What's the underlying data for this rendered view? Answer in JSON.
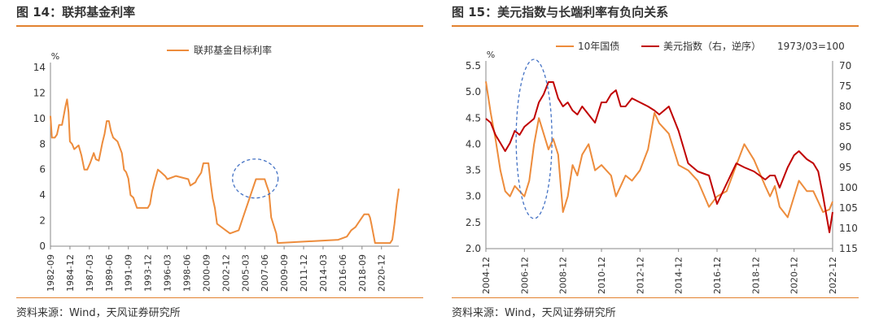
{
  "charts": {
    "left": {
      "title": "图 14：联邦基金利率",
      "source": "资料来源：Wind，天风证券研究所"
    },
    "right": {
      "title": "图 15：美元指数与长端利率有负向关系",
      "source": "资料来源：Wind，天风证券研究所"
    }
  },
  "colors": {
    "orange": "#ED8C3C",
    "darkred": "#C00000",
    "rule": "#E2822F",
    "dashed": "#4472C4"
  },
  "chart_data": [
    {
      "type": "line",
      "title": "",
      "ylabel": "%",
      "ylim": [
        0,
        14
      ],
      "yticks": [
        0,
        2,
        4,
        6,
        8,
        10,
        12,
        14
      ],
      "xrange": [
        "1982-09",
        "2022-12"
      ],
      "xticks": [
        "1982-09",
        "1984-12",
        "1987-03",
        "1989-06",
        "1991-09",
        "1993-12",
        "1996-03",
        "1998-06",
        "2000-09",
        "2002-12",
        "2005-03",
        "2007-06",
        "2009-09",
        "2011-12",
        "2014-03",
        "2016-06",
        "2018-09",
        "2020-12"
      ],
      "legend_position": "top-center",
      "grid": false,
      "annotation": "dashed ellipse around 2005-2007 peak",
      "series": [
        {
          "name": "联邦基金目标利率",
          "color": "#ED8C3C",
          "x": [
            "1982-09",
            "1982-11",
            "1983-03",
            "1983-06",
            "1983-09",
            "1984-01",
            "1984-06",
            "1984-08",
            "1984-10",
            "1984-12",
            "1985-03",
            "1985-06",
            "1985-12",
            "1986-04",
            "1986-08",
            "1986-12",
            "1987-04",
            "1987-09",
            "1987-12",
            "1988-04",
            "1988-09",
            "1988-12",
            "1989-03",
            "1989-06",
            "1989-09",
            "1989-12",
            "1990-06",
            "1990-12",
            "1991-03",
            "1991-06",
            "1991-09",
            "1991-12",
            "1992-04",
            "1992-09",
            "1993-12",
            "1994-03",
            "1994-06",
            "1994-09",
            "1995-02",
            "1995-07",
            "1995-12",
            "1996-03",
            "1997-03",
            "1998-08",
            "1998-11",
            "1999-06",
            "1999-08",
            "1999-11",
            "2000-02",
            "2000-05",
            "2000-12",
            "2001-03",
            "2001-06",
            "2001-09",
            "2001-12",
            "2002-12",
            "2003-06",
            "2004-06",
            "2004-12",
            "2005-06",
            "2005-12",
            "2006-06",
            "2007-06",
            "2007-09",
            "2007-12",
            "2008-03",
            "2008-10",
            "2008-12",
            "2015-12",
            "2016-12",
            "2017-06",
            "2017-12",
            "2018-06",
            "2018-12",
            "2019-06",
            "2019-08",
            "2019-10",
            "2020-03",
            "2020-06",
            "2021-12",
            "2022-03",
            "2022-06",
            "2022-09",
            "2022-12"
          ],
          "y": [
            10.2,
            8.5,
            8.5,
            8.75,
            9.5,
            9.5,
            11.0,
            11.5,
            10.5,
            8.2,
            8.0,
            7.6,
            7.9,
            7.1,
            6.0,
            6.0,
            6.5,
            7.3,
            6.8,
            6.7,
            8.1,
            8.8,
            9.8,
            9.8,
            9.0,
            8.5,
            8.2,
            7.3,
            6.0,
            5.8,
            5.3,
            4.0,
            3.8,
            3.0,
            3.0,
            3.3,
            4.3,
            5.0,
            6.0,
            5.75,
            5.5,
            5.25,
            5.5,
            5.25,
            4.75,
            5.0,
            5.25,
            5.5,
            5.75,
            6.5,
            6.5,
            5.0,
            3.75,
            3.0,
            1.75,
            1.25,
            1.0,
            1.25,
            2.25,
            3.25,
            4.25,
            5.25,
            5.25,
            4.75,
            4.25,
            2.25,
            1.0,
            0.25,
            0.5,
            0.75,
            1.25,
            1.5,
            2.0,
            2.5,
            2.5,
            2.25,
            1.75,
            0.25,
            0.25,
            0.25,
            0.5,
            1.75,
            3.25,
            4.5
          ]
        }
      ]
    },
    {
      "type": "line",
      "title": "",
      "ylabel": "%",
      "ylim": [
        2.0,
        5.5
      ],
      "yticks": [
        2.0,
        2.5,
        3.0,
        3.5,
        4.0,
        4.5,
        5.0,
        5.5
      ],
      "y2lim": [
        70,
        115
      ],
      "y2ticks": [
        70,
        75,
        80,
        85,
        90,
        95,
        100,
        105,
        110,
        115
      ],
      "y2_inverted": true,
      "xrange": [
        "2004-12",
        "2022-12"
      ],
      "xticks": [
        "2004-12",
        "2006-12",
        "2008-12",
        "2010-12",
        "2012-12",
        "2014-12",
        "2016-12",
        "2018-12",
        "2020-12",
        "2022-12"
      ],
      "legend_position": "top",
      "legend_note": "1973/03=100",
      "grid": false,
      "annotation": "dashed ellipse around 2006-2008",
      "series": [
        {
          "name": "10年国债",
          "color": "#ED8C3C",
          "axis": "left",
          "x": [
            "2004-12",
            "2005-03",
            "2005-06",
            "2005-09",
            "2005-12",
            "2006-03",
            "2006-06",
            "2006-09",
            "2006-12",
            "2007-03",
            "2007-06",
            "2007-09",
            "2007-12",
            "2008-03",
            "2008-06",
            "2008-09",
            "2008-12",
            "2009-03",
            "2009-06",
            "2009-09",
            "2009-12",
            "2010-04",
            "2010-08",
            "2010-12",
            "2011-03",
            "2011-06",
            "2011-09",
            "2011-12",
            "2012-03",
            "2012-07",
            "2012-12",
            "2013-05",
            "2013-09",
            "2013-12",
            "2014-06",
            "2014-12",
            "2015-06",
            "2015-12",
            "2016-07",
            "2016-12",
            "2017-06",
            "2017-12",
            "2018-05",
            "2018-11",
            "2019-06",
            "2019-09",
            "2019-12",
            "2020-03",
            "2020-08",
            "2020-12",
            "2021-03",
            "2021-08",
            "2021-12",
            "2022-03",
            "2022-06",
            "2022-10",
            "2022-12"
          ],
          "y": [
            5.2,
            4.6,
            4.1,
            3.5,
            3.1,
            3.0,
            3.2,
            3.1,
            3.0,
            3.3,
            4.0,
            4.5,
            4.2,
            3.9,
            4.1,
            3.8,
            2.7,
            3.0,
            3.6,
            3.4,
            3.8,
            4.0,
            3.5,
            3.6,
            3.5,
            3.4,
            3.0,
            3.2,
            3.4,
            3.3,
            3.5,
            3.9,
            4.6,
            4.4,
            4.2,
            3.6,
            3.5,
            3.3,
            2.8,
            3.0,
            3.1,
            3.6,
            4.0,
            3.7,
            3.2,
            3.0,
            3.2,
            2.8,
            2.6,
            3.0,
            3.3,
            3.1,
            3.1,
            2.9,
            2.7,
            2.75,
            2.9
          ]
        },
        {
          "name": "美元指数（右，逆序）",
          "color": "#C00000",
          "axis": "right",
          "x": [
            "2004-12",
            "2005-03",
            "2005-06",
            "2005-09",
            "2005-12",
            "2006-03",
            "2006-06",
            "2006-09",
            "2006-12",
            "2007-03",
            "2007-06",
            "2007-09",
            "2007-12",
            "2008-03",
            "2008-06",
            "2008-09",
            "2008-12",
            "2009-03",
            "2009-06",
            "2009-09",
            "2009-12",
            "2010-04",
            "2010-08",
            "2010-12",
            "2011-03",
            "2011-06",
            "2011-09",
            "2011-12",
            "2012-03",
            "2012-07",
            "2012-12",
            "2013-05",
            "2013-09",
            "2013-12",
            "2014-06",
            "2014-12",
            "2015-06",
            "2015-12",
            "2016-07",
            "2016-12",
            "2017-06",
            "2017-12",
            "2018-05",
            "2018-11",
            "2019-06",
            "2019-09",
            "2019-12",
            "2020-03",
            "2020-08",
            "2020-12",
            "2021-03",
            "2021-08",
            "2021-12",
            "2022-03",
            "2022-06",
            "2022-10",
            "2022-12"
          ],
          "y": [
            83,
            84,
            87,
            89,
            91,
            89,
            86,
            87,
            85,
            84,
            83,
            79,
            77,
            74,
            74,
            78,
            80,
            79,
            81,
            82,
            80,
            82,
            84,
            79,
            79,
            77,
            76,
            80,
            80,
            78,
            79,
            80,
            81,
            82,
            80,
            86,
            94,
            96,
            97,
            104,
            99,
            94,
            95,
            96,
            98,
            97,
            97,
            100,
            95,
            92,
            91,
            93,
            94,
            96,
            102,
            111,
            106
          ]
        }
      ]
    }
  ]
}
